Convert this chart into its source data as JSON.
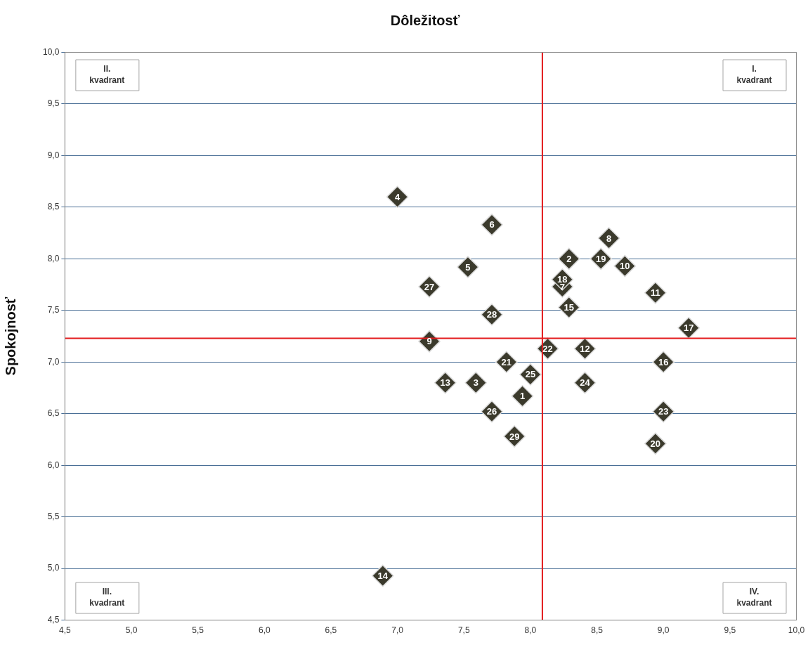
{
  "chart_data": {
    "type": "scatter",
    "xlabel": "Dôležitosť",
    "ylabel": "Spokojnosť",
    "xlim": [
      4.5,
      10.0
    ],
    "ylim": [
      4.5,
      10.0
    ],
    "xticks": [
      {
        "value": 4.5,
        "label": "4,5"
      },
      {
        "value": 5,
        "label": "5,0"
      },
      {
        "value": 5.5,
        "label": "5,5"
      },
      {
        "value": 6,
        "label": "6,0"
      },
      {
        "value": 6.5,
        "label": "6,5"
      },
      {
        "value": 7,
        "label": "7,0"
      },
      {
        "value": 7.5,
        "label": "7,5"
      },
      {
        "value": 8,
        "label": "8,0"
      },
      {
        "value": 8.5,
        "label": "8,5"
      },
      {
        "value": 9,
        "label": "9,0"
      },
      {
        "value": 9.5,
        "label": "9,5"
      },
      {
        "value": 10,
        "label": "10,0"
      }
    ],
    "yticks": [
      {
        "value": 4.5,
        "label": "4,5"
      },
      {
        "value": 5,
        "label": "5,0"
      },
      {
        "value": 5.5,
        "label": "5,5"
      },
      {
        "value": 6,
        "label": "6,0"
      },
      {
        "value": 6.5,
        "label": "6,5"
      },
      {
        "value": 7,
        "label": "7,0"
      },
      {
        "value": 7.5,
        "label": "7,5"
      },
      {
        "value": 8,
        "label": "8,0"
      },
      {
        "value": 8.5,
        "label": "8,5"
      },
      {
        "value": 9,
        "label": "9,0"
      },
      {
        "value": 9.5,
        "label": "9,5"
      },
      {
        "value": 10,
        "label": "10,0"
      }
    ],
    "x": [
      7.94,
      8.29,
      7.59,
      7.0,
      7.53,
      7.71,
      8.24,
      8.59,
      7.24,
      8.71,
      8.94,
      8.41,
      7.36,
      6.89,
      8.29,
      9.0,
      9.19,
      8.24,
      8.53,
      8.94,
      7.82,
      8.13,
      9.0,
      8.41,
      8.0,
      7.71,
      7.24,
      7.71,
      7.88
    ],
    "values": [
      6.67,
      8.0,
      6.8,
      8.6,
      7.92,
      8.33,
      7.73,
      8.2,
      7.2,
      7.93,
      7.67,
      7.13,
      6.8,
      4.93,
      7.53,
      7.0,
      7.33,
      7.8,
      8.0,
      6.21,
      7.0,
      7.13,
      6.52,
      6.8,
      6.88,
      6.52,
      7.73,
      7.46,
      6.28
    ],
    "color": "#3b3a2c",
    "marker": "diamond",
    "grid": "y",
    "ref_lines": [
      {
        "axis": "x",
        "value": 8.09,
        "color": "#e31a1c"
      },
      {
        "axis": "y",
        "value": 7.23,
        "color": "#e31a1c"
      }
    ],
    "annotations": [
      "II.\nkvadrant",
      "I.\nkvadrant",
      "III.\nkvadrant",
      "IV.\nkvadrant",
      {
        "text": "1",
        "x": 7.94,
        "y": 6.67
      },
      {
        "text": "2",
        "x": 8.29,
        "y": 8.0
      },
      {
        "text": "3",
        "x": 7.59,
        "y": 6.8
      },
      {
        "text": "4",
        "x": 7.0,
        "y": 8.6
      },
      {
        "text": "5",
        "x": 7.53,
        "y": 7.92
      },
      {
        "text": "6",
        "x": 7.71,
        "y": 8.33
      },
      {
        "text": "7",
        "x": 8.24,
        "y": 7.73
      },
      {
        "text": "8",
        "x": 8.59,
        "y": 8.2
      },
      {
        "text": "9",
        "x": 7.24,
        "y": 7.2
      },
      {
        "text": "10",
        "x": 8.71,
        "y": 7.93
      },
      {
        "text": "11",
        "x": 8.94,
        "y": 7.67
      },
      {
        "text": "12",
        "x": 8.41,
        "y": 7.13
      },
      {
        "text": "13",
        "x": 7.36,
        "y": 6.8
      },
      {
        "text": "14",
        "x": 6.89,
        "y": 4.93
      },
      {
        "text": "15",
        "x": 8.29,
        "y": 7.53
      },
      {
        "text": "16",
        "x": 9.0,
        "y": 7.0
      },
      {
        "text": "17",
        "x": 9.19,
        "y": 7.33
      },
      {
        "text": "18",
        "x": 8.24,
        "y": 7.8
      },
      {
        "text": "19",
        "x": 8.53,
        "y": 8.0
      },
      {
        "text": "20",
        "x": 8.94,
        "y": 6.21
      },
      {
        "text": "21",
        "x": 7.82,
        "y": 7.0
      },
      {
        "text": "22",
        "x": 8.13,
        "y": 7.13
      },
      {
        "text": "23",
        "x": 9.0,
        "y": 6.52
      },
      {
        "text": "24",
        "x": 8.41,
        "y": 6.8
      },
      {
        "text": "25",
        "x": 8.0,
        "y": 6.88
      },
      {
        "text": "26",
        "x": 7.71,
        "y": 6.52
      },
      {
        "text": "27",
        "x": 7.24,
        "y": 7.73
      },
      {
        "text": "28",
        "x": 7.71,
        "y": 7.46
      },
      {
        "text": "29",
        "x": 7.88,
        "y": 6.28
      }
    ]
  }
}
